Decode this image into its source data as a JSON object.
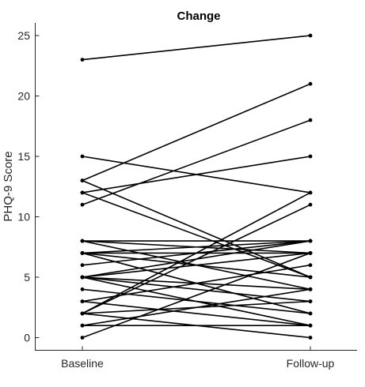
{
  "chart_data": {
    "type": "line",
    "title": "Change",
    "xlabel": "",
    "ylabel": "PHQ-9 Score",
    "categories": [
      "Baseline",
      "Follow-up"
    ],
    "ylim": [
      -1,
      26
    ],
    "yticks": [
      0,
      5,
      10,
      15,
      20,
      25
    ],
    "grid": false,
    "legend": "none",
    "line_color": "#000000",
    "pairs": [
      [
        23,
        25
      ],
      [
        15,
        12
      ],
      [
        13,
        21
      ],
      [
        13,
        5
      ],
      [
        12,
        15
      ],
      [
        12,
        5
      ],
      [
        11,
        18
      ],
      [
        8,
        8
      ],
      [
        8,
        7
      ],
      [
        8,
        4
      ],
      [
        7,
        8
      ],
      [
        7,
        7
      ],
      [
        7,
        5
      ],
      [
        7,
        2
      ],
      [
        6,
        8
      ],
      [
        5,
        8
      ],
      [
        5,
        7
      ],
      [
        5,
        4
      ],
      [
        5,
        3
      ],
      [
        5,
        1
      ],
      [
        4,
        2
      ],
      [
        3,
        6
      ],
      [
        3,
        1
      ],
      [
        2,
        12
      ],
      [
        2,
        11
      ],
      [
        2,
        3
      ],
      [
        2,
        0
      ],
      [
        1,
        4
      ],
      [
        1,
        1
      ],
      [
        0,
        7
      ]
    ]
  }
}
